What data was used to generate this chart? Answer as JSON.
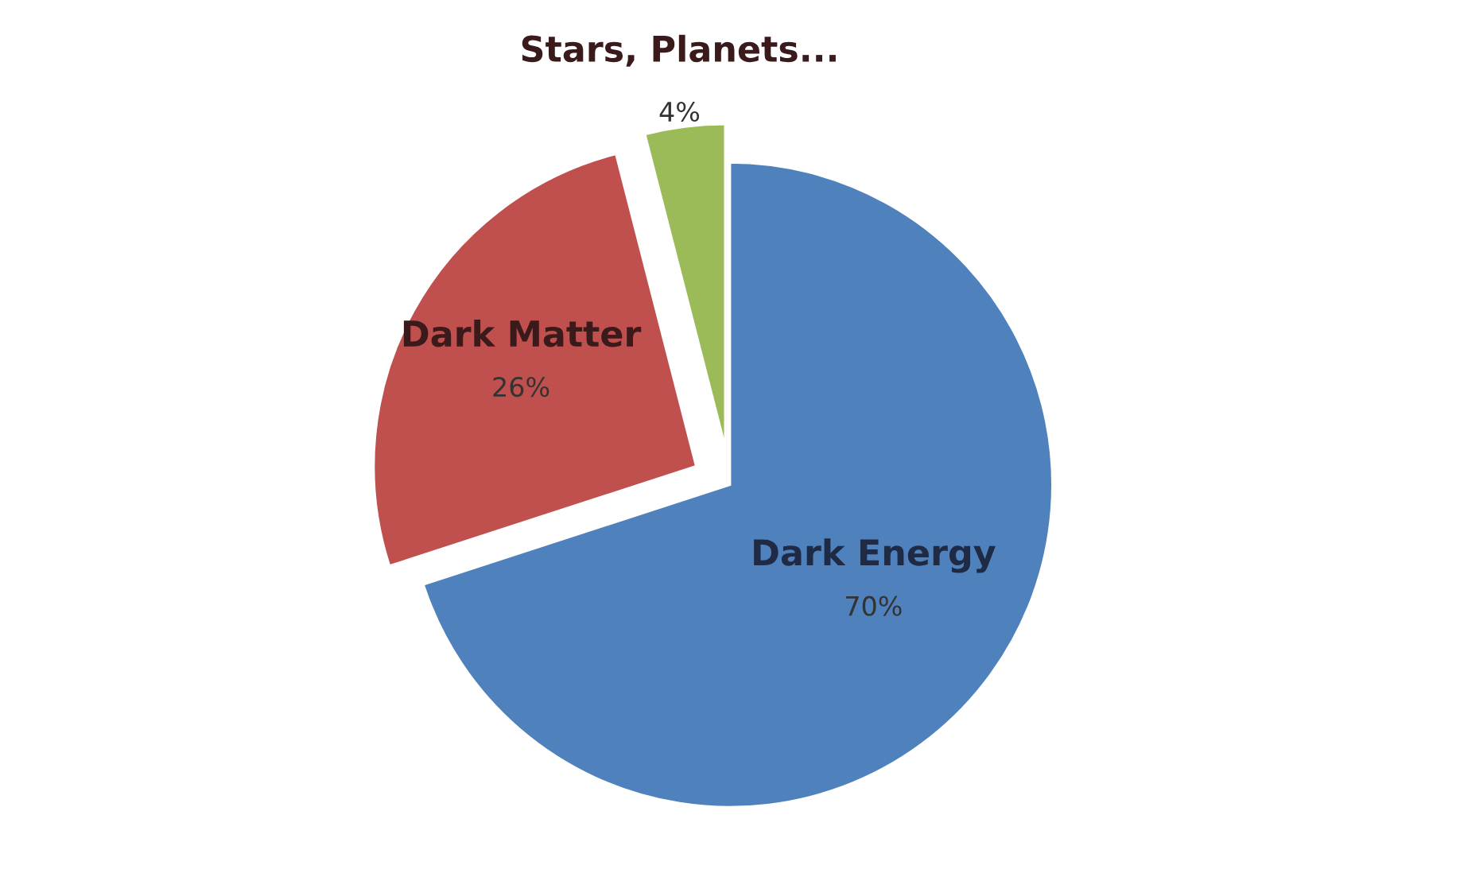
{
  "chart_data": {
    "type": "pie",
    "categories": [
      "Dark Energy",
      "Dark Matter",
      "Stars, Planets..."
    ],
    "values": [
      70,
      26,
      4
    ],
    "colors": [
      "#4f81bd",
      "#c0504d",
      "#9bbb59"
    ],
    "value_labels": [
      "70%",
      "26%",
      "4%"
    ]
  }
}
